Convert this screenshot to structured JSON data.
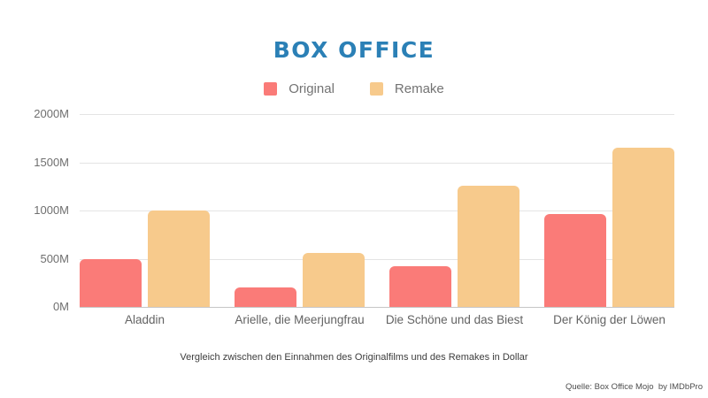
{
  "title": "BOX OFFICE",
  "title_color": "#2B80B6",
  "caption": "Vergleich zwischen den Einnahmen des Originalfilms und des Remakes in Dollar",
  "source": "Quelle: Box Office Mojo  by IMDbPro",
  "chart_data": {
    "type": "bar",
    "title": "BOX OFFICE",
    "categories": [
      "Aladdin",
      "Arielle, die Meerjungfrau",
      "Die Schöne und das Biest",
      "Der König der Löwen"
    ],
    "series": [
      {
        "name": "Original",
        "color": "#FA7B78",
        "values": [
          500,
          200,
          420,
          960
        ]
      },
      {
        "name": "Remake",
        "color": "#F7CA8C",
        "values": [
          1000,
          560,
          1260,
          1650
        ]
      }
    ],
    "xlabel": "",
    "ylabel": "",
    "ylim": [
      0,
      2000
    ],
    "yticks": [
      0,
      500,
      1000,
      1500,
      2000
    ],
    "ytick_suffix": "M",
    "grid": true,
    "legend_position": "top",
    "note": "values in millions of dollars"
  }
}
